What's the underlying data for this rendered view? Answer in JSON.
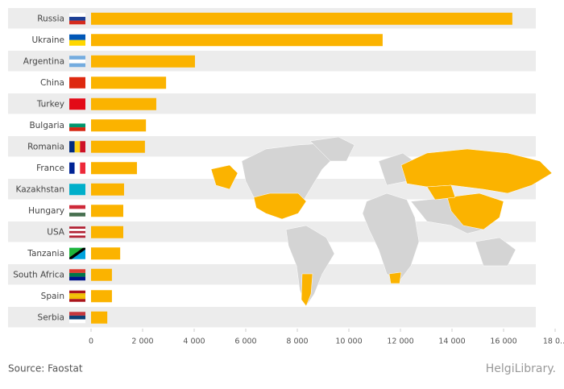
{
  "chart_data": {
    "type": "bar",
    "orientation": "horizontal",
    "categories": [
      "Russia",
      "Ukraine",
      "Argentina",
      "China",
      "Turkey",
      "Bulgaria",
      "Romania",
      "France",
      "Kazakhstan",
      "Hungary",
      "USA",
      "Tanzania",
      "South Africa",
      "Spain",
      "Serbia"
    ],
    "values": [
      16340,
      11310,
      4030,
      2910,
      2530,
      2130,
      2090,
      1780,
      1280,
      1250,
      1250,
      1130,
      810,
      810,
      630
    ],
    "color": "#fbb300",
    "xlim": [
      0,
      18000
    ],
    "xticks": [
      0,
      {
        "value": 2000,
        "label": "2 000"
      },
      {
        "value": 4000,
        "label": "4 000"
      },
      {
        "value": 6000,
        "label": "6 000"
      },
      {
        "value": 8000,
        "label": "8 000"
      },
      {
        "value": 10000,
        "label": "10 000"
      },
      {
        "value": 12000,
        "label": "12 000"
      },
      {
        "value": 14000,
        "label": "14 000"
      },
      {
        "value": 16000,
        "label": "16 000"
      },
      {
        "value": 18000,
        "label": "18 0..."
      }
    ],
    "source": "Source: Faostat",
    "brand": "HelgiLibrary."
  }
}
